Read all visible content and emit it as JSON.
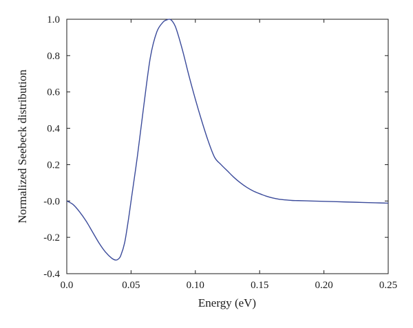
{
  "chart_data": {
    "type": "line",
    "title": "",
    "xlabel": "Energy (eV)",
    "ylabel": "Normalized Seebeck distribution",
    "xlim": [
      0,
      0.25
    ],
    "ylim": [
      -0.4,
      1.0
    ],
    "xticks": [
      0.0,
      0.05,
      0.1,
      0.15,
      0.2,
      0.25
    ],
    "xtick_labels": [
      "0.0",
      "0.05",
      "0.10",
      "0.15",
      "0.20",
      "0.25"
    ],
    "yticks": [
      -0.4,
      -0.2,
      0.0,
      0.2,
      0.4,
      0.6,
      0.8,
      1.0
    ],
    "ytick_labels": [
      "-0.4",
      "-0.2",
      "-0.0",
      "0.2",
      "0.4",
      "0.6",
      "0.8",
      "1.0"
    ],
    "grid": false,
    "line_color": "#3a4a9a",
    "series": [
      {
        "x": [
          0.0,
          0.005,
          0.01,
          0.015,
          0.02,
          0.025,
          0.03,
          0.035,
          0.038,
          0.04,
          0.042,
          0.045,
          0.048,
          0.05,
          0.055,
          0.06,
          0.065,
          0.07,
          0.075,
          0.078,
          0.08,
          0.082,
          0.085,
          0.09,
          0.095,
          0.1,
          0.105,
          0.11,
          0.115,
          0.12,
          0.125,
          0.13,
          0.135,
          0.14,
          0.145,
          0.15,
          0.155,
          0.16,
          0.165,
          0.17,
          0.175,
          0.18,
          0.19,
          0.2,
          0.21,
          0.22,
          0.23,
          0.24,
          0.25
        ],
        "values": [
          0.0,
          -0.02,
          -0.06,
          -0.11,
          -0.17,
          -0.23,
          -0.28,
          -0.315,
          -0.325,
          -0.32,
          -0.3,
          -0.23,
          -0.1,
          0.0,
          0.25,
          0.53,
          0.79,
          0.93,
          0.985,
          0.997,
          1.0,
          0.99,
          0.95,
          0.83,
          0.69,
          0.56,
          0.44,
          0.33,
          0.24,
          0.2,
          0.165,
          0.13,
          0.1,
          0.075,
          0.055,
          0.04,
          0.027,
          0.017,
          0.01,
          0.006,
          0.003,
          0.002,
          0.0,
          -0.002,
          -0.004,
          -0.006,
          -0.008,
          -0.01,
          -0.012
        ]
      }
    ]
  }
}
